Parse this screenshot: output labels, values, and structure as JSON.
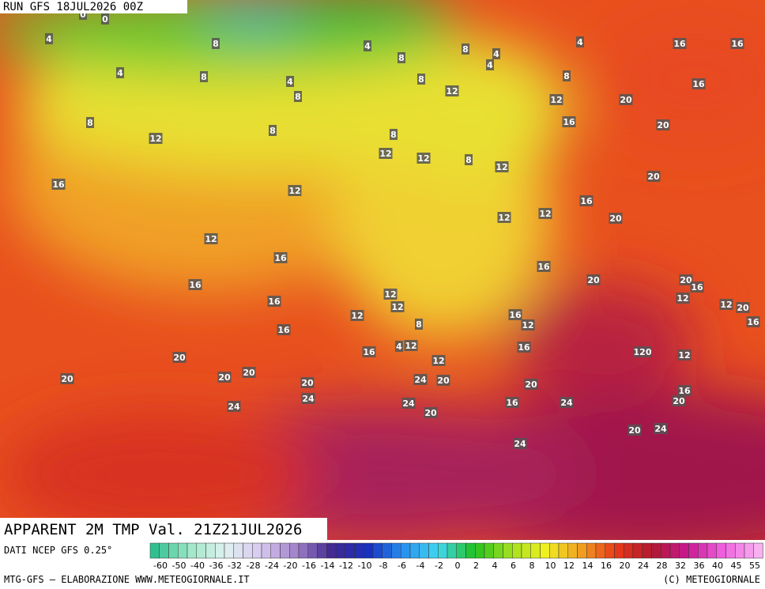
{
  "header": {
    "run": "RUN GFS 18JUL2026 00Z",
    "title": "APPARENT 2M TMP Val. 21Z21JUL2026"
  },
  "legend": {
    "source": "DATI NCEP GFS 0.25°",
    "labels": [
      "-60",
      "-50",
      "-40",
      "-36",
      "-32",
      "-28",
      "-24",
      "-20",
      "-16",
      "-14",
      "-12",
      "-10",
      "-8",
      "-6",
      "-4",
      "-2",
      "0",
      "2",
      "4",
      "6",
      "8",
      "10",
      "12",
      "14",
      "16",
      "20",
      "24",
      "28",
      "32",
      "36",
      "40",
      "45",
      "55"
    ]
  },
  "footer": {
    "left": "MTG-GFS — ELABORAZIONE WWW.METEOGIORNALE.IT",
    "right": "(C) METEOGIORNALE"
  },
  "isotherm_labels": [
    0,
    0,
    4,
    4,
    8,
    12,
    16,
    8,
    8,
    4,
    8,
    8,
    4,
    8,
    8,
    8,
    4,
    4,
    4,
    8,
    12,
    12,
    20,
    16,
    20,
    16,
    16,
    16,
    8,
    12,
    12,
    8,
    12,
    20,
    12,
    16,
    12,
    12,
    20,
    12,
    16,
    16,
    20,
    20,
    16,
    16,
    16,
    12,
    12,
    12,
    12,
    12,
    20,
    16,
    16,
    8,
    16,
    12,
    16,
    4,
    12,
    16,
    120,
    12,
    20,
    12,
    20,
    20,
    20,
    20,
    24,
    20,
    20,
    16,
    20,
    24,
    24,
    24,
    20,
    16,
    24,
    20,
    24,
    24
  ]
}
